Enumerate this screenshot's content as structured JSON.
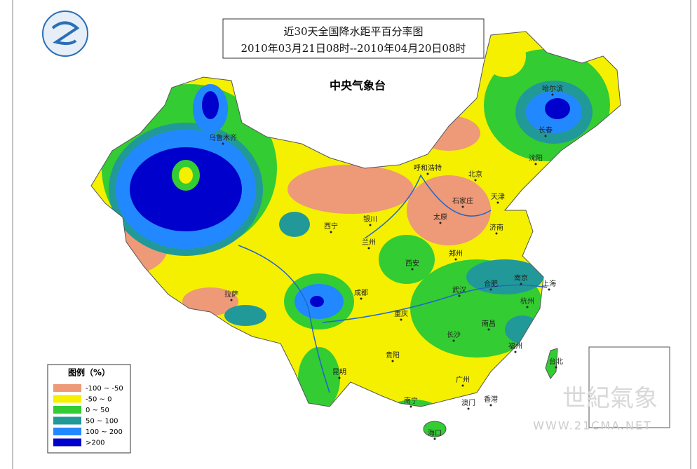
{
  "header": {
    "title": "近30天全国降水距平百分率图",
    "period": "2010年03月21日08时--2010年04月20日08时",
    "agency": "中央气象台"
  },
  "legend": {
    "title": "图例（%）",
    "items": [
      {
        "label": "-100 ~ -50",
        "color": "#ee9977"
      },
      {
        "label": "-50 ~ 0",
        "color": "#f4f000"
      },
      {
        "label": "0 ~ 50",
        "color": "#33cc33"
      },
      {
        "label": "50 ~ 100",
        "color": "#229999"
      },
      {
        "label": "100 ~ 200",
        "color": "#2288ff"
      },
      {
        "label": ">200",
        "color": "#0000cc"
      }
    ]
  },
  "cities": [
    "乌鲁木齐",
    "哈尔滨",
    "长春",
    "沈阳",
    "呼和浩特",
    "北京",
    "天津",
    "石家庄",
    "太原",
    "济南",
    "西宁",
    "银川",
    "兰州",
    "郑州",
    "西安",
    "合肥",
    "南京",
    "上海",
    "武汉",
    "杭州",
    "拉萨",
    "成都",
    "重庆",
    "南昌",
    "长沙",
    "福州",
    "台北",
    "贵阳",
    "昆明",
    "广州",
    "南宁",
    "澳门",
    "香港",
    "海口"
  ],
  "watermark": {
    "brand": "世紀氣象",
    "url": "WWW.21CMA.NET"
  }
}
